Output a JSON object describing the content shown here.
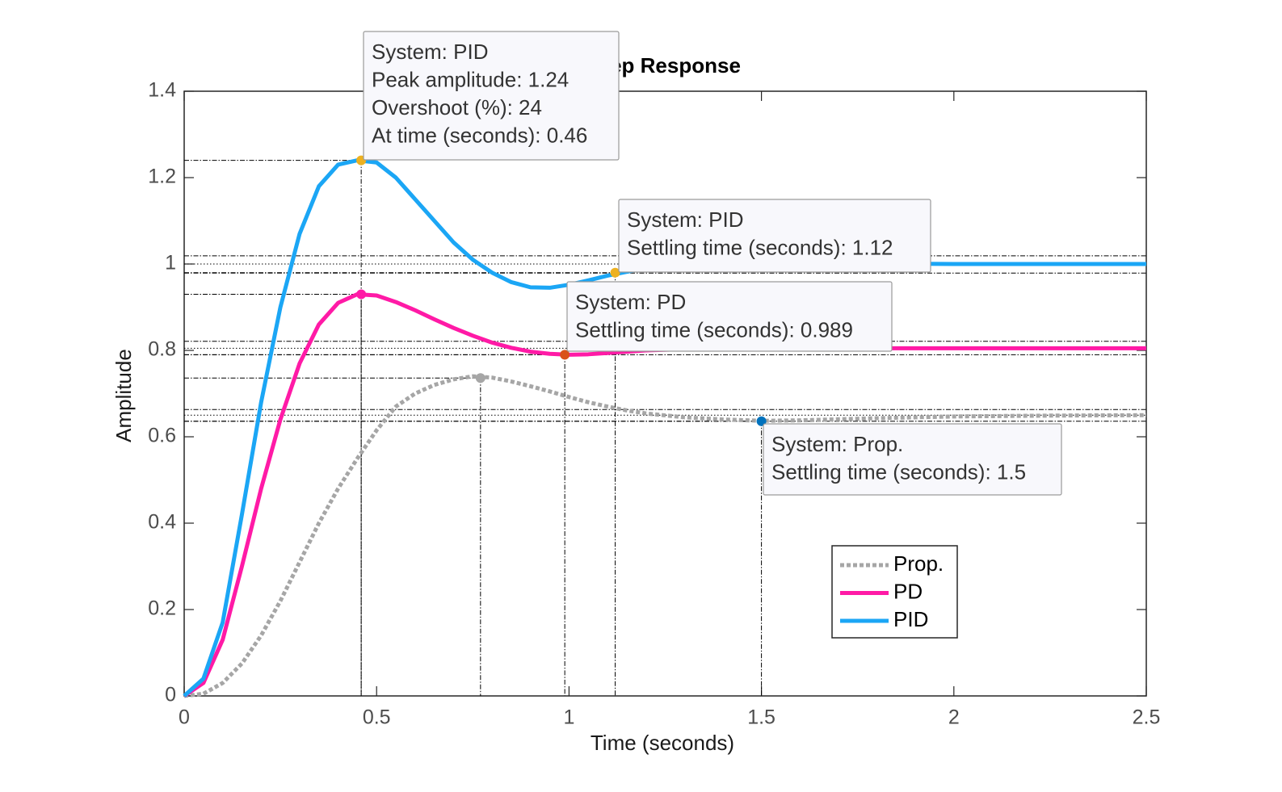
{
  "chart_data": {
    "type": "line",
    "title": "Step Response",
    "x_label": "Time (seconds)",
    "y_label": "Amplitude",
    "x": [
      0,
      0.05,
      0.1,
      0.15,
      0.2,
      0.25,
      0.3,
      0.35,
      0.4,
      0.45,
      0.5,
      0.55,
      0.6,
      0.65,
      0.7,
      0.75,
      0.8,
      0.85,
      0.9,
      0.95,
      1.0,
      1.05,
      1.1,
      1.15,
      1.2,
      1.3,
      1.4,
      1.5,
      1.6,
      1.8,
      2.0,
      2.25,
      2.5
    ],
    "series": [
      {
        "name": "Prop.",
        "color": "#a6a6a6",
        "dash": true,
        "values": [
          0,
          0.005,
          0.03,
          0.075,
          0.14,
          0.22,
          0.31,
          0.4,
          0.48,
          0.55,
          0.615,
          0.67,
          0.7,
          0.72,
          0.733,
          0.74,
          0.737,
          0.728,
          0.717,
          0.705,
          0.692,
          0.68,
          0.67,
          0.661,
          0.654,
          0.645,
          0.64,
          0.637,
          0.638,
          0.643,
          0.647,
          0.649,
          0.65
        ]
      },
      {
        "name": "PD",
        "color": "#ff1aa6",
        "dash": false,
        "values": [
          0,
          0.03,
          0.13,
          0.3,
          0.48,
          0.64,
          0.77,
          0.86,
          0.91,
          0.93,
          0.927,
          0.912,
          0.893,
          0.872,
          0.852,
          0.834,
          0.818,
          0.806,
          0.797,
          0.792,
          0.79,
          0.791,
          0.794,
          0.797,
          0.8,
          0.803,
          0.805,
          0.806,
          0.806,
          0.805,
          0.805,
          0.805,
          0.805
        ]
      },
      {
        "name": "PID",
        "color": "#1ba6f5",
        "dash": false,
        "values": [
          0,
          0.04,
          0.17,
          0.42,
          0.68,
          0.9,
          1.07,
          1.18,
          1.23,
          1.24,
          1.235,
          1.2,
          1.15,
          1.1,
          1.05,
          1.01,
          0.98,
          0.958,
          0.946,
          0.945,
          0.952,
          0.962,
          0.973,
          0.982,
          0.99,
          0.997,
          1.0,
          1.002,
          1.002,
          1.001,
          1.0,
          1.0,
          1.0
        ]
      }
    ],
    "xlim": [
      0,
      2.5
    ],
    "xticks": [
      0,
      0.5,
      1,
      1.5,
      2,
      2.5
    ],
    "ylim": [
      0,
      1.4
    ],
    "yticks": [
      0,
      0.2,
      0.4,
      0.6,
      0.8,
      1,
      1.2,
      1.4
    ],
    "legend": "lower right",
    "final_values": [
      1.0,
      0.805,
      0.65
    ],
    "settling_bands": [
      1.019,
      0.979,
      0.821,
      0.79,
      0.663,
      0.636
    ],
    "markers": [
      {
        "x": 0.46,
        "y": 0.93,
        "color": "#ff1aa6"
      },
      {
        "x": 0.77,
        "y": 0.736,
        "color": "#a6a6a6"
      }
    ],
    "datatips": [
      {
        "x": 0.46,
        "y": 1.24,
        "color": "#edb120",
        "lines": [
          "System: PID",
          "Peak amplitude: 1.24",
          "Overshoot (%): 24",
          "At time (seconds): 0.46"
        ]
      },
      {
        "x": 1.12,
        "y": 0.98,
        "color": "#edb120",
        "lines": [
          "System: PID",
          "Settling time (seconds): 1.12"
        ]
      },
      {
        "x": 0.989,
        "y": 0.79,
        "color": "#d95319",
        "lines": [
          "System: PD",
          "Settling time (seconds): 0.989"
        ]
      },
      {
        "x": 1.5,
        "y": 0.636,
        "color": "#0072bd",
        "lines": [
          "System: Prop.",
          "Settling time (seconds): 1.5"
        ]
      }
    ]
  }
}
